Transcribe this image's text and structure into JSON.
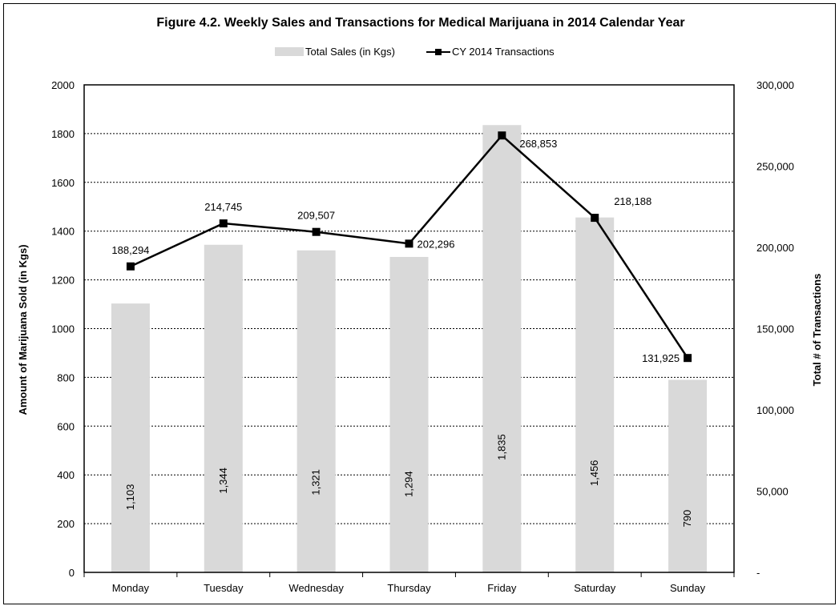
{
  "chart_data": {
    "type": "bar",
    "title": "Figure 4.2. Weekly Sales and Transactions for Medical Marijuana in 2014 Calendar Year",
    "categories": [
      "Monday",
      "Tuesday",
      "Wednesday",
      "Thursday",
      "Friday",
      "Saturday",
      "Sunday"
    ],
    "series": [
      {
        "name": "Total Sales (in Kgs)",
        "type": "bar",
        "axis": "left",
        "values": [
          1103,
          1344,
          1321,
          1294,
          1835,
          1456,
          790
        ],
        "labels": [
          "1,103",
          "1,344",
          "1,321",
          "1,294",
          "1,835",
          "1,456",
          "790"
        ],
        "color": "#d9d9d9"
      },
      {
        "name": "CY 2014 Transactions",
        "type": "line",
        "axis": "right",
        "values": [
          188294,
          214745,
          209507,
          202296,
          268853,
          218188,
          131925
        ],
        "labels": [
          "188,294",
          "214,745",
          "209,507",
          "202,296",
          "268,853",
          "218,188",
          "131,925"
        ],
        "color": "#000000"
      }
    ],
    "ylabel": "Amount of Marijuana Sold (in Kgs)",
    "y2label": "Total # of Transactions",
    "ylim": [
      0,
      2000
    ],
    "y2lim": [
      0,
      300000
    ],
    "yticks": [
      "0",
      "200",
      "400",
      "600",
      "800",
      "1000",
      "1200",
      "1400",
      "1600",
      "1800",
      "2000"
    ],
    "y2ticks": [
      "-",
      "50,000",
      "100,000",
      "150,000",
      "200,000",
      "250,000",
      "300,000"
    ],
    "grid": true,
    "legend": "top-center"
  }
}
